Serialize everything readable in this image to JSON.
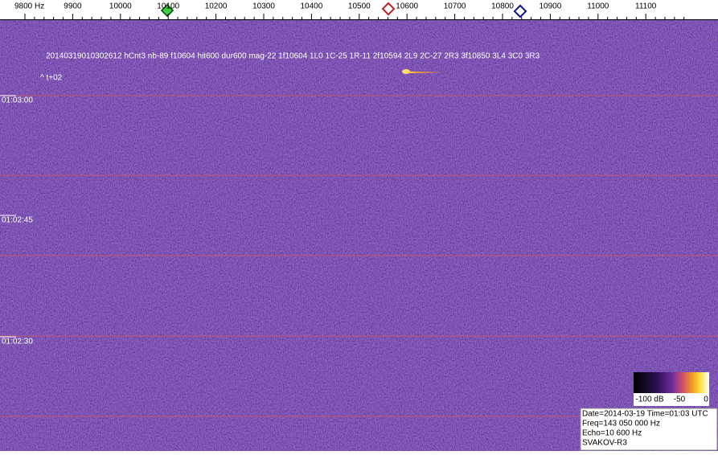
{
  "frequency_axis": {
    "labels": [
      "9800 Hz",
      "9900",
      "10000",
      "10100",
      "10200",
      "10300",
      "10400",
      "10500",
      "10600",
      "10700",
      "10800",
      "10900",
      "11000",
      "11100"
    ]
  },
  "detection_text": "20140319010302612 hCnt3 nb-89 f10604 hit600 dur600 mag-22 1f10604 1L0 1C-25 1R-11 2f10594 2L9 2C-27 2R3 3f10850 3L4 3C0 3R3",
  "offset_text": "^ t+02",
  "time_labels": [
    "01:03:00",
    "01:02:45",
    "01:02:30"
  ],
  "colorbar": {
    "labels": [
      "-100 dB",
      "-50",
      "0"
    ]
  },
  "info": {
    "lines": [
      "Date=2014-03-19 Time=01:03 UTC",
      "Freq=143 050 000 Hz",
      "Echo=10 600 Hz",
      "SVAKOV-R3"
    ]
  }
}
